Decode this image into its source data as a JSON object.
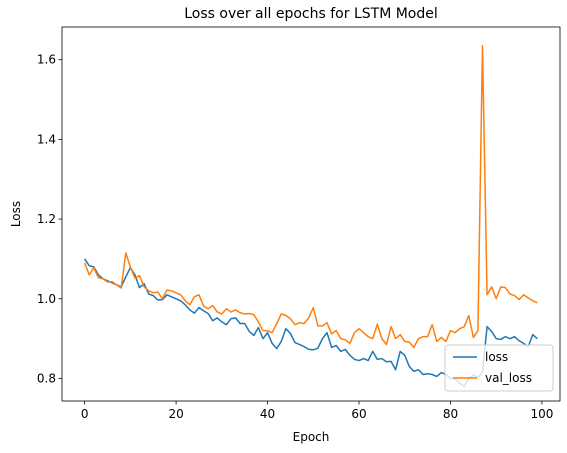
{
  "chart_data": {
    "type": "line",
    "title": "Loss over all epochs for LSTM Model",
    "xlabel": "Epoch",
    "ylabel": "Loss",
    "xlim": [
      -4.95,
      103.95
    ],
    "ylim": [
      0.7435,
      1.682
    ],
    "x_ticks": [
      0,
      20,
      40,
      60,
      80,
      100
    ],
    "y_ticks": [
      0.8,
      1.0,
      1.2,
      1.4,
      1.6
    ],
    "y_tick_labels": [
      "0.8",
      "1.0",
      "1.2",
      "1.4",
      "1.6"
    ],
    "grid": false,
    "legend_position": "lower-right",
    "x": [
      0,
      1,
      2,
      3,
      4,
      5,
      6,
      7,
      8,
      9,
      10,
      11,
      12,
      13,
      14,
      15,
      16,
      17,
      18,
      19,
      20,
      21,
      22,
      23,
      24,
      25,
      26,
      27,
      28,
      29,
      30,
      31,
      32,
      33,
      34,
      35,
      36,
      37,
      38,
      39,
      40,
      41,
      42,
      43,
      44,
      45,
      46,
      47,
      48,
      49,
      50,
      51,
      52,
      53,
      54,
      55,
      56,
      57,
      58,
      59,
      60,
      61,
      62,
      63,
      64,
      65,
      66,
      67,
      68,
      69,
      70,
      71,
      72,
      73,
      74,
      75,
      76,
      77,
      78,
      79,
      80,
      81,
      82,
      83,
      84,
      85,
      86,
      87,
      88,
      89,
      90,
      91,
      92,
      93,
      94,
      95,
      96,
      97,
      98,
      99
    ],
    "series": [
      {
        "name": "loss",
        "color": "#1f77b4",
        "values": [
          1.1,
          1.083,
          1.08,
          1.06,
          1.05,
          1.045,
          1.04,
          1.035,
          1.03,
          1.055,
          1.078,
          1.06,
          1.028,
          1.038,
          1.012,
          1.008,
          0.997,
          0.998,
          1.01,
          1.005,
          1.0,
          0.995,
          0.985,
          0.972,
          0.964,
          0.978,
          0.97,
          0.963,
          0.945,
          0.952,
          0.942,
          0.935,
          0.95,
          0.952,
          0.938,
          0.938,
          0.918,
          0.908,
          0.928,
          0.9,
          0.915,
          0.888,
          0.875,
          0.893,
          0.925,
          0.913,
          0.89,
          0.885,
          0.88,
          0.873,
          0.872,
          0.876,
          0.9,
          0.915,
          0.878,
          0.883,
          0.868,
          0.873,
          0.858,
          0.848,
          0.845,
          0.85,
          0.845,
          0.868,
          0.848,
          0.85,
          0.842,
          0.843,
          0.822,
          0.868,
          0.858,
          0.83,
          0.818,
          0.822,
          0.81,
          0.812,
          0.81,
          0.805,
          0.815,
          0.81,
          0.8,
          0.8,
          0.788,
          0.78,
          0.8,
          0.808,
          0.803,
          0.815,
          0.93,
          0.918,
          0.9,
          0.898,
          0.905,
          0.9,
          0.905,
          0.895,
          0.888,
          0.88,
          0.91,
          0.9
        ]
      },
      {
        "name": "val_loss",
        "color": "#ff7f0e",
        "values": [
          1.09,
          1.06,
          1.078,
          1.053,
          1.05,
          1.042,
          1.043,
          1.035,
          1.027,
          1.115,
          1.08,
          1.052,
          1.058,
          1.03,
          1.02,
          1.015,
          1.017,
          1.0,
          1.022,
          1.02,
          1.015,
          1.01,
          0.995,
          0.985,
          1.005,
          1.01,
          0.982,
          0.975,
          0.983,
          0.967,
          0.962,
          0.975,
          0.967,
          0.972,
          0.965,
          0.962,
          0.963,
          0.96,
          0.942,
          0.92,
          0.92,
          0.915,
          0.938,
          0.962,
          0.958,
          0.95,
          0.935,
          0.94,
          0.938,
          0.952,
          0.978,
          0.932,
          0.932,
          0.94,
          0.912,
          0.92,
          0.9,
          0.897,
          0.888,
          0.915,
          0.925,
          0.915,
          0.905,
          0.9,
          0.936,
          0.9,
          0.885,
          0.93,
          0.9,
          0.91,
          0.893,
          0.891,
          0.878,
          0.9,
          0.905,
          0.905,
          0.935,
          0.893,
          0.903,
          0.893,
          0.92,
          0.915,
          0.925,
          0.93,
          0.958,
          0.903,
          0.92,
          1.635,
          1.01,
          1.03,
          1.0,
          1.03,
          1.028,
          1.012,
          1.008,
          0.998,
          1.01,
          1.002,
          0.995,
          0.99
        ]
      }
    ]
  }
}
